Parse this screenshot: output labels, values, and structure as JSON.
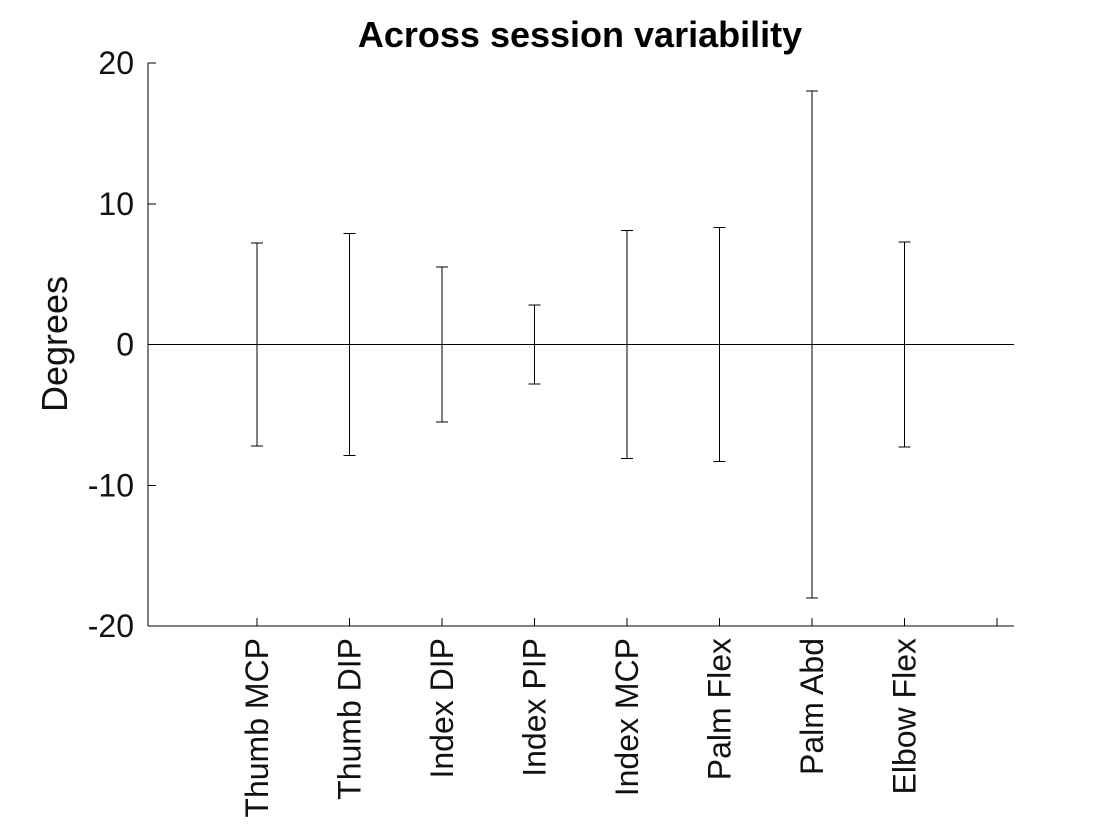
{
  "chart_data": {
    "type": "bar",
    "title": "Across session variability",
    "xlabel": "",
    "ylabel": "Degrees",
    "ylim": [
      -20,
      20
    ],
    "yticks": [
      20,
      10,
      0,
      -10,
      -20
    ],
    "categories": [
      "Thumb MCP",
      "Thumb DIP",
      "Index DIP",
      "Index PIP",
      "Index MCP",
      "Palm Flex",
      "Palm Abd",
      "Elbow Flex"
    ],
    "values": [
      0,
      0,
      0,
      0,
      0,
      0,
      0,
      0
    ],
    "error": [
      7.2,
      7.9,
      5.5,
      2.8,
      8.1,
      8.3,
      18.0,
      7.3
    ],
    "grid": false,
    "colors": {
      "ink": "#000000",
      "background": "#ffffff"
    }
  }
}
